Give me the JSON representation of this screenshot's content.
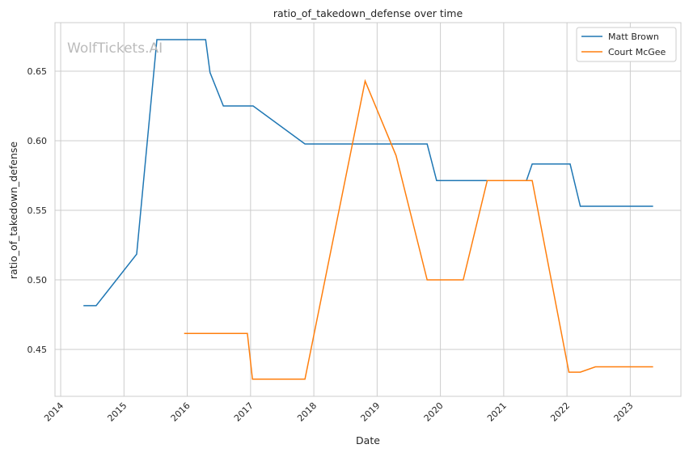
{
  "chart_data": {
    "type": "line",
    "title": "ratio_of_takedown_defense over time",
    "xlabel": "Date",
    "ylabel": "ratio_of_takedown_defense",
    "watermark": "WolfTickets.AI",
    "xlim": [
      2013.91,
      2023.8
    ],
    "ylim": [
      0.4163,
      0.6849
    ],
    "xticks": [
      2014,
      2015,
      2016,
      2017,
      2018,
      2019,
      2020,
      2021,
      2022,
      2023
    ],
    "xtick_labels": [
      "2014",
      "2015",
      "2016",
      "2017",
      "2018",
      "2019",
      "2020",
      "2021",
      "2022",
      "2023"
    ],
    "yticks": [
      0.45,
      0.5,
      0.55,
      0.6,
      0.65
    ],
    "ytick_labels": [
      "0.45",
      "0.50",
      "0.55",
      "0.60",
      "0.65"
    ],
    "grid": true,
    "legend_position": "top-right",
    "series": [
      {
        "name": "Matt Brown",
        "color": "#1f77b4",
        "x": [
          2014.36,
          2014.56,
          2015.2,
          2015.52,
          2016.29,
          2016.36,
          2016.57,
          2017.04,
          2017.86,
          2019.79,
          2019.94,
          2021.36,
          2021.45,
          2022.05,
          2022.21,
          2023.36
        ],
        "y": [
          0.4815,
          0.4815,
          0.5185,
          0.6727,
          0.6727,
          0.649,
          0.625,
          0.625,
          0.5977,
          0.5977,
          0.5714,
          0.5714,
          0.5833,
          0.5833,
          0.5529,
          0.5529
        ]
      },
      {
        "name": "Court McGee",
        "color": "#ff7f0e",
        "x": [
          2015.95,
          2016.95,
          2017.03,
          2017.86,
          2018.81,
          2019.3,
          2019.79,
          2020.36,
          2020.74,
          2021.45,
          2022.03,
          2022.21,
          2022.45,
          2023.36
        ],
        "y": [
          0.4615,
          0.4615,
          0.4286,
          0.4286,
          0.6429,
          0.5893,
          0.5,
          0.5,
          0.5714,
          0.5714,
          0.4337,
          0.4337,
          0.4375,
          0.4375
        ]
      }
    ]
  }
}
